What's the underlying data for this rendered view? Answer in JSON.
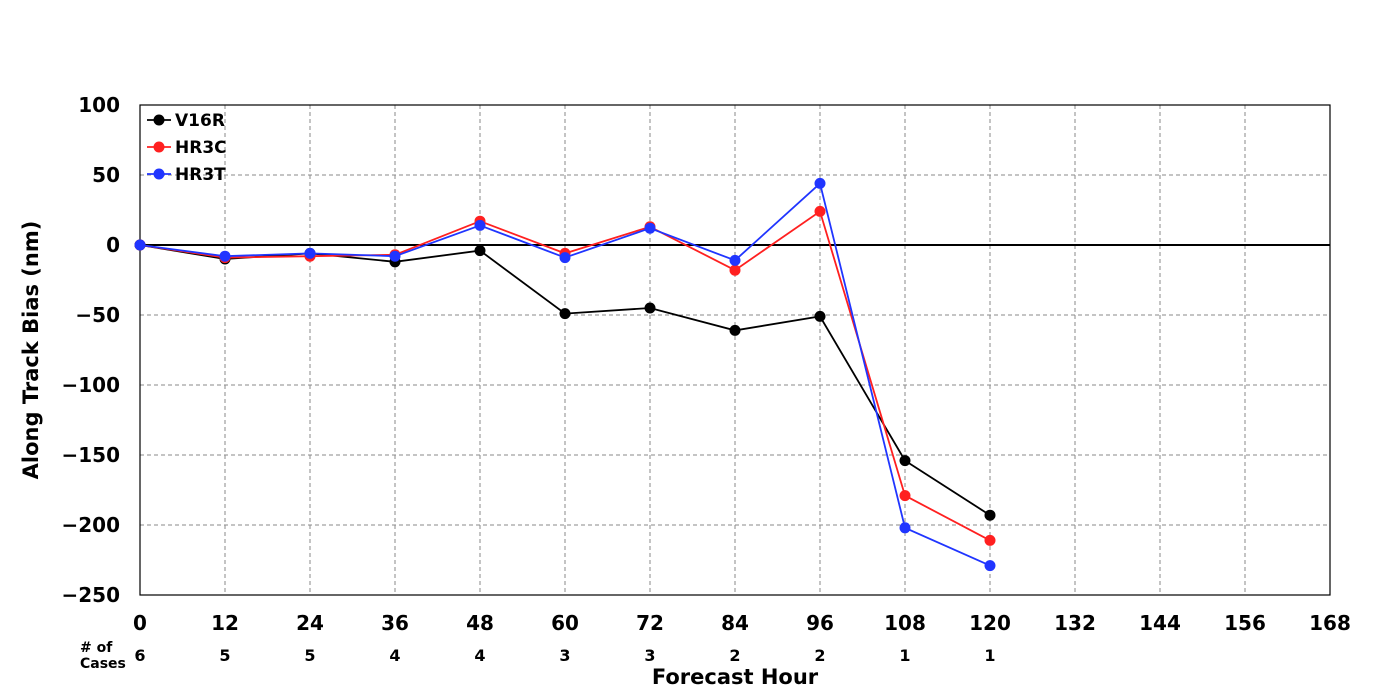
{
  "chart_data": {
    "type": "line",
    "xlabel": "Forecast Hour",
    "ylabel": "Along Track Bias (nm)",
    "xlim": [
      0,
      168
    ],
    "ylim": [
      -250,
      100
    ],
    "xticks": [
      "0",
      "12",
      "24",
      "36",
      "48",
      "60",
      "72",
      "84",
      "96",
      "108",
      "120",
      "132",
      "144",
      "156",
      "168"
    ],
    "yticks": [
      "100",
      "50",
      "0",
      "−50",
      "−100",
      "−150",
      "−200",
      "−250"
    ],
    "x": [
      0,
      12,
      24,
      36,
      48,
      60,
      72,
      84,
      96,
      108,
      120
    ],
    "grid": true,
    "legend_position": "top-left",
    "series": [
      {
        "name": "V16R",
        "color": "#000000",
        "values": [
          0,
          -10,
          -6,
          -12,
          -4,
          -49,
          -45,
          -61,
          -51,
          -154,
          -193
        ]
      },
      {
        "name": "HR3C",
        "color": "#ff2020",
        "values": [
          0,
          -9,
          -8,
          -7,
          17,
          -6,
          13,
          -18,
          24,
          -179,
          -211
        ]
      },
      {
        "name": "HR3T",
        "color": "#2035ff",
        "values": [
          0,
          -8,
          -6,
          -8,
          14,
          -9,
          12,
          -11,
          44,
          -202,
          -229
        ]
      }
    ],
    "cases_label_line1": "# of",
    "cases_label_line2": "Cases",
    "cases": [
      "6",
      "5",
      "5",
      "4",
      "4",
      "3",
      "3",
      "2",
      "2",
      "1",
      "1"
    ]
  }
}
